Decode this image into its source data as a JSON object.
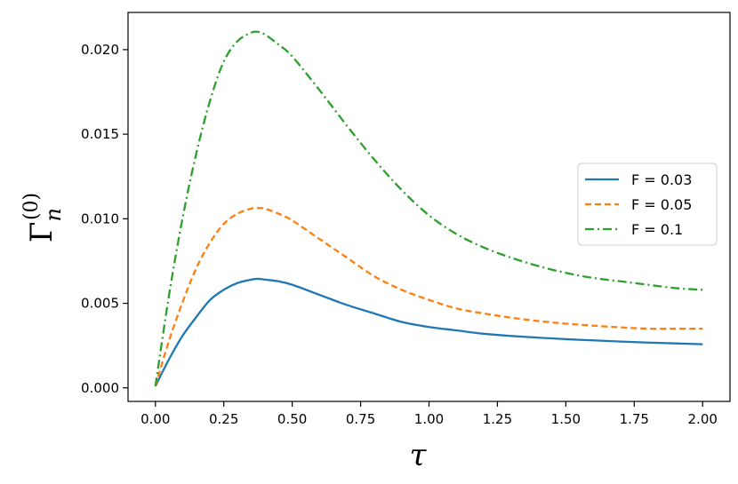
{
  "chart_data": {
    "type": "line",
    "xlabel": "τ",
    "ylabel_main": "Γ",
    "ylabel_sup": "(0)",
    "ylabel_sub": "n",
    "xlim": [
      -0.1,
      2.1
    ],
    "ylim": [
      -0.0008,
      0.0222
    ],
    "xticks": [
      0.0,
      0.25,
      0.5,
      0.75,
      1.0,
      1.25,
      1.5,
      1.75,
      2.0
    ],
    "xtick_labels": [
      "0.00",
      "0.25",
      "0.50",
      "0.75",
      "1.00",
      "1.25",
      "1.50",
      "1.75",
      "2.00"
    ],
    "yticks": [
      0.0,
      0.005,
      0.01,
      0.015,
      0.02
    ],
    "ytick_labels": [
      "0.000",
      "0.005",
      "0.010",
      "0.015",
      "0.020"
    ],
    "legend_position": "center-right",
    "grid": false,
    "x": [
      0.0,
      0.05,
      0.1,
      0.15,
      0.2,
      0.25,
      0.3,
      0.35,
      0.375,
      0.4,
      0.45,
      0.5,
      0.6,
      0.7,
      0.8,
      0.9,
      1.0,
      1.1,
      1.2,
      1.3,
      1.4,
      1.5,
      1.6,
      1.7,
      1.8,
      1.9,
      2.0
    ],
    "series": [
      {
        "name": "F = 0.03",
        "color": "#1f77b4",
        "dash": "solid",
        "values": [
          0.0001,
          0.0017,
          0.0031,
          0.0042,
          0.0052,
          0.0058,
          0.0062,
          0.0064,
          0.00645,
          0.0064,
          0.0063,
          0.0061,
          0.0055,
          0.0049,
          0.0044,
          0.0039,
          0.0036,
          0.0034,
          0.0032,
          0.00307,
          0.00297,
          0.00288,
          0.00281,
          0.00274,
          0.00268,
          0.00263,
          0.00258
        ]
      },
      {
        "name": "F = 0.05",
        "color": "#ff7f0e",
        "dash": "dashed",
        "values": [
          0.0001,
          0.0028,
          0.0051,
          0.0071,
          0.0086,
          0.0097,
          0.0103,
          0.0106,
          0.01063,
          0.0106,
          0.0103,
          0.0099,
          0.0088,
          0.0077,
          0.0066,
          0.0058,
          0.0052,
          0.0047,
          0.0044,
          0.00415,
          0.00395,
          0.0038,
          0.00368,
          0.00358,
          0.0035,
          0.0035,
          0.0035
        ]
      },
      {
        "name": "F = 0.1",
        "color": "#2ca02c",
        "dash": "dashdot",
        "values": [
          0.0001,
          0.0055,
          0.0101,
          0.0139,
          0.017,
          0.0193,
          0.0205,
          0.021,
          0.02105,
          0.0209,
          0.0203,
          0.0196,
          0.0176,
          0.0155,
          0.0135,
          0.0117,
          0.0102,
          0.0091,
          0.0083,
          0.0077,
          0.0072,
          0.0068,
          0.0065,
          0.0063,
          0.0061,
          0.0059,
          0.0058
        ]
      }
    ]
  }
}
